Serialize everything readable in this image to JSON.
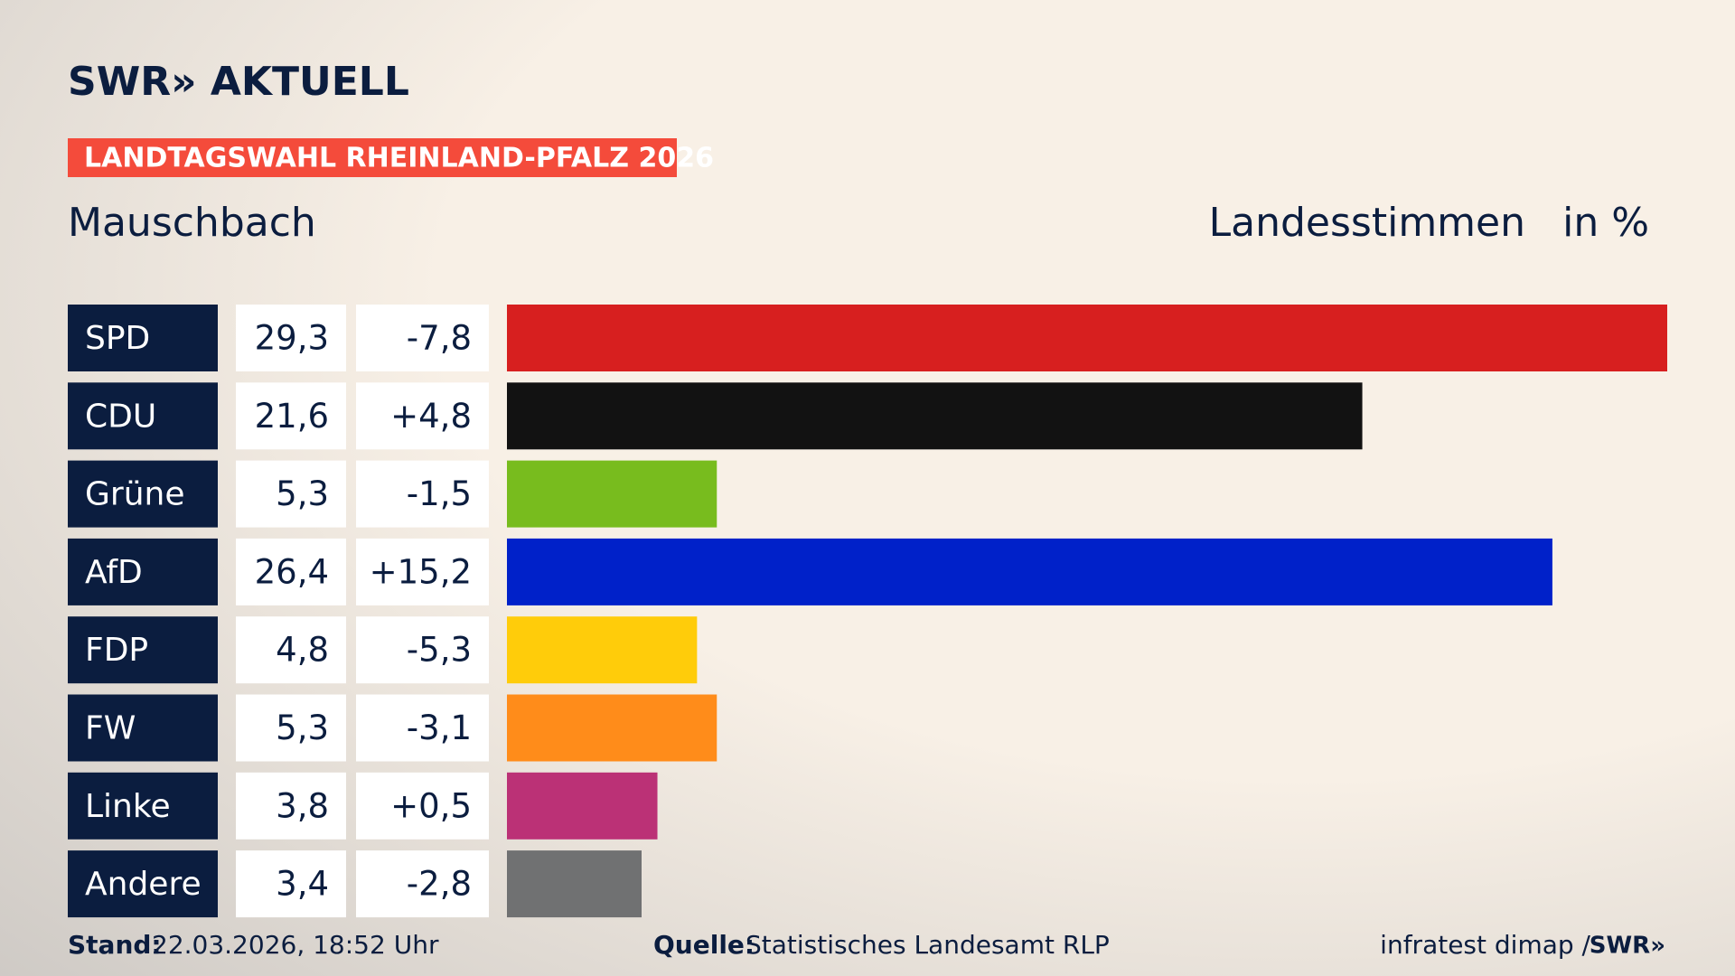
{
  "page": {
    "logo": "SWR» AKTUELL",
    "banner": "LANDTAGSWAHL RHEINLAND-PFALZ 2026",
    "footer": {
      "stand_label": "Stand:",
      "stand": "22.03.2026, 18:52 Uhr",
      "source_label": "Quelle:",
      "source": "Statistisches Landesamt RLP",
      "pollster": "infratest dimap /",
      "brand": "SWR»"
    }
  },
  "chart_data": {
    "type": "bar",
    "orientation": "horizontal",
    "title": "Mauschbach",
    "measure": "Landesstimmen",
    "unit": "in %",
    "categories": [
      "SPD",
      "CDU",
      "Grüne",
      "AfD",
      "FDP",
      "FW",
      "Linke",
      "Andere"
    ],
    "values": [
      29.3,
      21.6,
      5.3,
      26.4,
      4.8,
      5.3,
      3.8,
      3.4
    ],
    "value_labels": [
      "29,3",
      "21,6",
      "5,3",
      "26,4",
      "4,8",
      "5,3",
      "3,8",
      "3,4"
    ],
    "changes": [
      -7.8,
      4.8,
      -1.5,
      15.2,
      -5.3,
      -3.1,
      0.5,
      -2.8
    ],
    "change_labels": [
      "-7,8",
      "+4,8",
      "-1,5",
      "+15,2",
      "-5,3",
      "-3,1",
      "+0,5",
      "-2,8"
    ],
    "colors": [
      "#d71f1f",
      "#121212",
      "#78bc1e",
      "#0021c9",
      "#ffcc0a",
      "#ff8c1a",
      "#bb3176",
      "#707172"
    ]
  }
}
